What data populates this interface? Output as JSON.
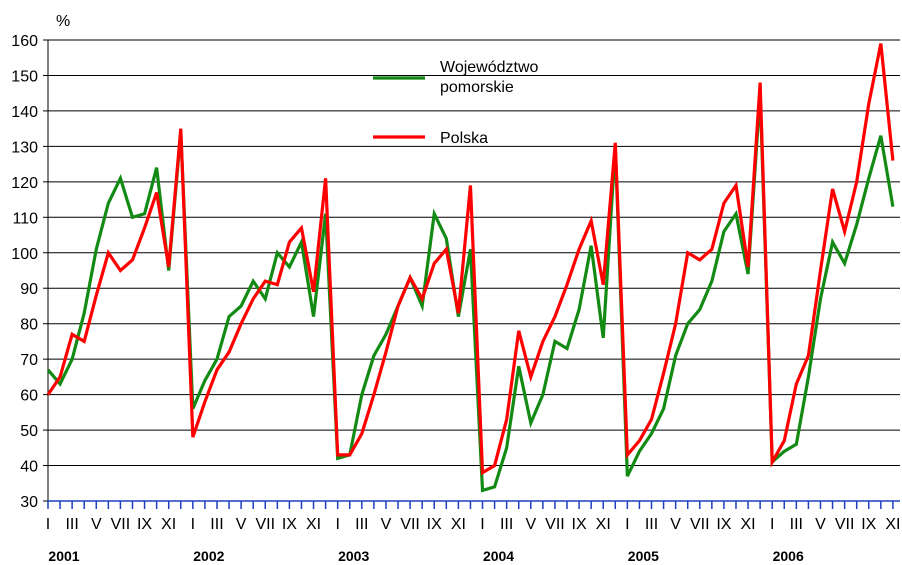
{
  "chart_data": {
    "type": "line",
    "y_label": "%",
    "categories": [
      "I",
      null,
      "III",
      null,
      "V",
      null,
      "VII",
      null,
      "IX",
      null,
      "XI",
      null,
      "I",
      null,
      "III",
      null,
      "V",
      null,
      "VII",
      null,
      "IX",
      null,
      "XI",
      null,
      "I",
      null,
      "III",
      null,
      "V",
      null,
      "VII",
      null,
      "IX",
      null,
      "XI",
      null,
      "I",
      null,
      "III",
      null,
      "V",
      null,
      "VII",
      null,
      "IX",
      null,
      "XI",
      null,
      "I",
      null,
      "III",
      null,
      "V",
      null,
      "VII",
      null,
      "IX",
      null,
      "XI",
      null,
      "I",
      null,
      "III",
      null,
      "V",
      null,
      "VII",
      null,
      "IX",
      null,
      "XI"
    ],
    "year_groups": [
      "2001",
      "2002",
      "2003",
      "2004",
      "2005",
      "2006"
    ],
    "series": [
      {
        "name": "Województwo pomorskie",
        "color": "#138a13",
        "values": [
          67,
          63,
          70,
          83,
          101,
          114,
          121,
          110,
          111,
          124,
          95,
          134,
          56,
          64,
          70,
          82,
          85,
          92,
          87,
          100,
          96,
          103,
          82,
          111,
          42,
          43,
          60,
          71,
          77,
          85,
          93,
          85,
          111,
          104,
          82,
          101,
          33,
          34,
          45,
          68,
          52,
          60,
          75,
          73,
          84,
          102,
          76,
          130,
          37,
          44,
          49,
          56,
          71,
          80,
          84,
          92,
          106,
          111,
          94,
          145,
          41,
          44,
          46,
          65,
          87,
          103,
          97,
          108,
          121,
          133,
          113
        ]
      },
      {
        "name": "Polska",
        "color": "#ff0000",
        "values": [
          60,
          65,
          77,
          75,
          88,
          100,
          95,
          98,
          107,
          117,
          96,
          135,
          48,
          58,
          67,
          72,
          80,
          87,
          92,
          91,
          103,
          107,
          89,
          121,
          43,
          43,
          49,
          60,
          72,
          85,
          93,
          87,
          97,
          101,
          83,
          119,
          38,
          40,
          53,
          78,
          65,
          75,
          82,
          91,
          101,
          109,
          91,
          131,
          43,
          47,
          53,
          66,
          80,
          100,
          98,
          101,
          114,
          119,
          96,
          148,
          41,
          47,
          63,
          71,
          95,
          118,
          106,
          120,
          142,
          159,
          126
        ]
      }
    ],
    "ylim": [
      30,
      160
    ],
    "yticks": [
      30,
      40,
      50,
      60,
      70,
      80,
      90,
      100,
      110,
      120,
      130,
      140,
      150,
      160
    ],
    "grid": true
  }
}
